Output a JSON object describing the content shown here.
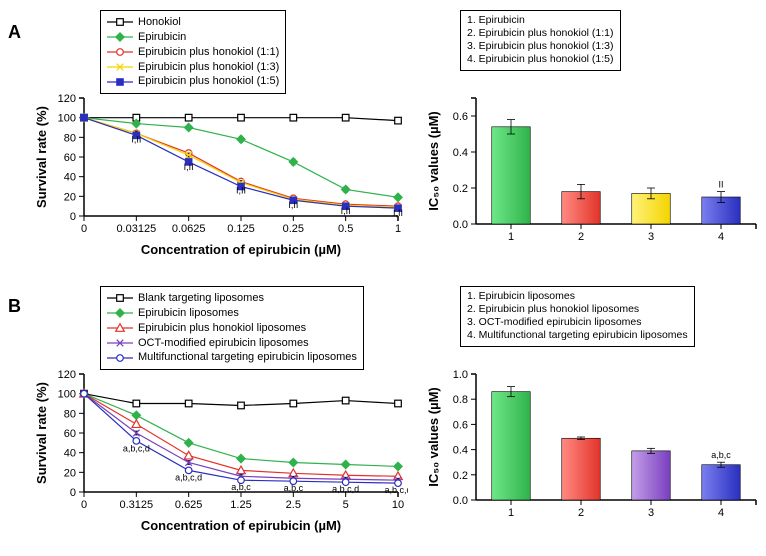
{
  "panelA": {
    "label": "A",
    "line_chart": {
      "type": "line",
      "x_title": "Concentration of epirubicin (µM)",
      "y_title": "Survival rate (%)",
      "x_categories": [
        "0",
        "0.03125",
        "0.0625",
        "0.125",
        "0.25",
        "0.5",
        "1"
      ],
      "ylim": [
        0,
        120
      ],
      "ytick_step": 20,
      "background_color": "#ffffff",
      "series": [
        {
          "name": "Honokiol",
          "color": "#000000",
          "marker": "square-open",
          "values": [
            100,
            100,
            100,
            100,
            100,
            100,
            97
          ],
          "err": [
            0,
            0,
            0,
            0,
            0,
            0,
            2
          ]
        },
        {
          "name": "Epirubicin",
          "color": "#2fb24b",
          "marker": "diamond",
          "values": [
            100,
            94,
            90,
            78,
            55,
            27,
            19
          ],
          "err": [
            0,
            2,
            2,
            3,
            3,
            3,
            2
          ]
        },
        {
          "name": "Epirubicin plus honokiol (1:1)",
          "color": "#e3342a",
          "marker": "circle-open",
          "values": [
            100,
            84,
            64,
            35,
            18,
            12,
            10
          ],
          "err": [
            0,
            2,
            2,
            2,
            2,
            2,
            2
          ]
        },
        {
          "name": "Epirubicin plus honokiol (1:3)",
          "color": "#f4d400",
          "marker": "x",
          "values": [
            100,
            84,
            62,
            34,
            17,
            11,
            9
          ],
          "err": [
            0,
            2,
            2,
            2,
            2,
            2,
            2
          ]
        },
        {
          "name": "Epirubicin plus honokiol (1:5)",
          "color": "#2a2fbf",
          "marker": "square-filled",
          "values": [
            100,
            82,
            55,
            30,
            16,
            10,
            8
          ],
          "err": [
            0,
            2,
            2,
            2,
            2,
            2,
            2
          ]
        }
      ],
      "annotations": [
        {
          "xi": 1,
          "y": 78,
          "text": "I,II"
        },
        {
          "xi": 2,
          "y": 50,
          "text": "I,II"
        },
        {
          "xi": 3,
          "y": 26,
          "text": "I,II"
        },
        {
          "xi": 4,
          "y": 11,
          "text": "I,II"
        },
        {
          "xi": 5,
          "y": 5,
          "text": "I,II"
        },
        {
          "xi": 6,
          "y": 3,
          "text": "I,II"
        }
      ]
    },
    "bar_chart": {
      "type": "bar",
      "y_title": "IC₅₀ values (µM)",
      "ylim": [
        0,
        0.7
      ],
      "yticks": [
        0.0,
        0.2,
        0.4,
        0.6
      ],
      "categories": [
        "1",
        "2",
        "3",
        "4"
      ],
      "values": [
        0.54,
        0.18,
        0.17,
        0.15
      ],
      "err": [
        0.04,
        0.04,
        0.03,
        0.03
      ],
      "bar_colors": [
        "#2fb24b",
        "#e3342a",
        "#f4d400",
        "#2a2fbf"
      ],
      "bar_gradients": [
        [
          "#6fe888",
          "#2fb24b"
        ],
        [
          "#ff8a82",
          "#e3342a"
        ],
        [
          "#fff27a",
          "#f4d400"
        ],
        [
          "#7a7ff0",
          "#2a2fbf"
        ]
      ],
      "list_labels": [
        "1. Epirubicin",
        "2. Epirubicin plus honokiol (1:1)",
        "3. Epirubicin plus honokiol (1:3)",
        "4. Epirubicin plus honokiol (1:5)"
      ],
      "annotation": {
        "i": 3,
        "text": "II"
      }
    }
  },
  "panelB": {
    "label": "B",
    "line_chart": {
      "type": "line",
      "x_title": "Concentration of epirubicin (µM)",
      "y_title": "Survival rate (%)",
      "x_categories": [
        "0",
        "0.3125",
        "0.625",
        "1.25",
        "2.5",
        "5",
        "10"
      ],
      "ylim": [
        0,
        120
      ],
      "ytick_step": 20,
      "background_color": "#ffffff",
      "series": [
        {
          "name": "Blank targeting liposomes",
          "color": "#000000",
          "marker": "square-open",
          "values": [
            100,
            90,
            90,
            88,
            90,
            93,
            90
          ],
          "err": [
            0,
            2,
            2,
            2,
            2,
            2,
            2
          ]
        },
        {
          "name": "Epirubicin liposomes",
          "color": "#2fb24b",
          "marker": "diamond",
          "values": [
            100,
            78,
            50,
            34,
            30,
            28,
            26
          ],
          "err": [
            0,
            2,
            2,
            2,
            2,
            2,
            2
          ]
        },
        {
          "name": "Epirubicin plus honokiol liposomes",
          "color": "#e3342a",
          "marker": "triangle-open",
          "values": [
            100,
            69,
            37,
            22,
            19,
            17,
            16
          ],
          "err": [
            0,
            2,
            2,
            2,
            2,
            2,
            2
          ]
        },
        {
          "name": "OCT-modified epirubicin liposomes",
          "color": "#7a3fbf",
          "marker": "x",
          "values": [
            100,
            60,
            30,
            16,
            14,
            13,
            12
          ],
          "err": [
            0,
            2,
            2,
            2,
            2,
            2,
            2
          ]
        },
        {
          "name": "Multifunctional targeting epirubicin liposomes",
          "color": "#2a2fbf",
          "marker": "circle-open",
          "values": [
            100,
            52,
            22,
            12,
            11,
            10,
            9
          ],
          "err": [
            0,
            2,
            2,
            2,
            2,
            2,
            2
          ]
        }
      ],
      "annotations": [
        {
          "xi": 1,
          "y": 44,
          "text": "a,b,c,d"
        },
        {
          "xi": 2,
          "y": 15,
          "text": "a,b,c,d"
        },
        {
          "xi": 3,
          "y": 5,
          "text": "a,b,c"
        },
        {
          "xi": 4,
          "y": 4,
          "text": "a,b,c"
        },
        {
          "xi": 5,
          "y": 3,
          "text": "a,b,c,d"
        },
        {
          "xi": 6,
          "y": 2,
          "text": "a,b,c,d"
        }
      ]
    },
    "bar_chart": {
      "type": "bar",
      "y_title": "IC₅₀ values (µM)",
      "ylim": [
        0,
        1.0
      ],
      "yticks": [
        0.0,
        0.2,
        0.4,
        0.6,
        0.8,
        1.0
      ],
      "categories": [
        "1",
        "2",
        "3",
        "4"
      ],
      "values": [
        0.86,
        0.49,
        0.39,
        0.28
      ],
      "err": [
        0.04,
        0.01,
        0.02,
        0.02
      ],
      "bar_colors": [
        "#2fb24b",
        "#e3342a",
        "#7a3fbf",
        "#2a2fbf"
      ],
      "bar_gradients": [
        [
          "#6fe888",
          "#2fb24b"
        ],
        [
          "#ff8a82",
          "#e3342a"
        ],
        [
          "#c39ee8",
          "#7a3fbf"
        ],
        [
          "#7a7ff0",
          "#2a2fbf"
        ]
      ],
      "list_labels": [
        "1. Epirubicin liposomes",
        "2. Epirubicin plus honokiol liposomes",
        "3. OCT-modified epirubicin liposomes",
        "4. Multifunctional targeting epirubicin liposomes"
      ],
      "annotation": {
        "i": 3,
        "text": "a,b,c"
      }
    }
  }
}
